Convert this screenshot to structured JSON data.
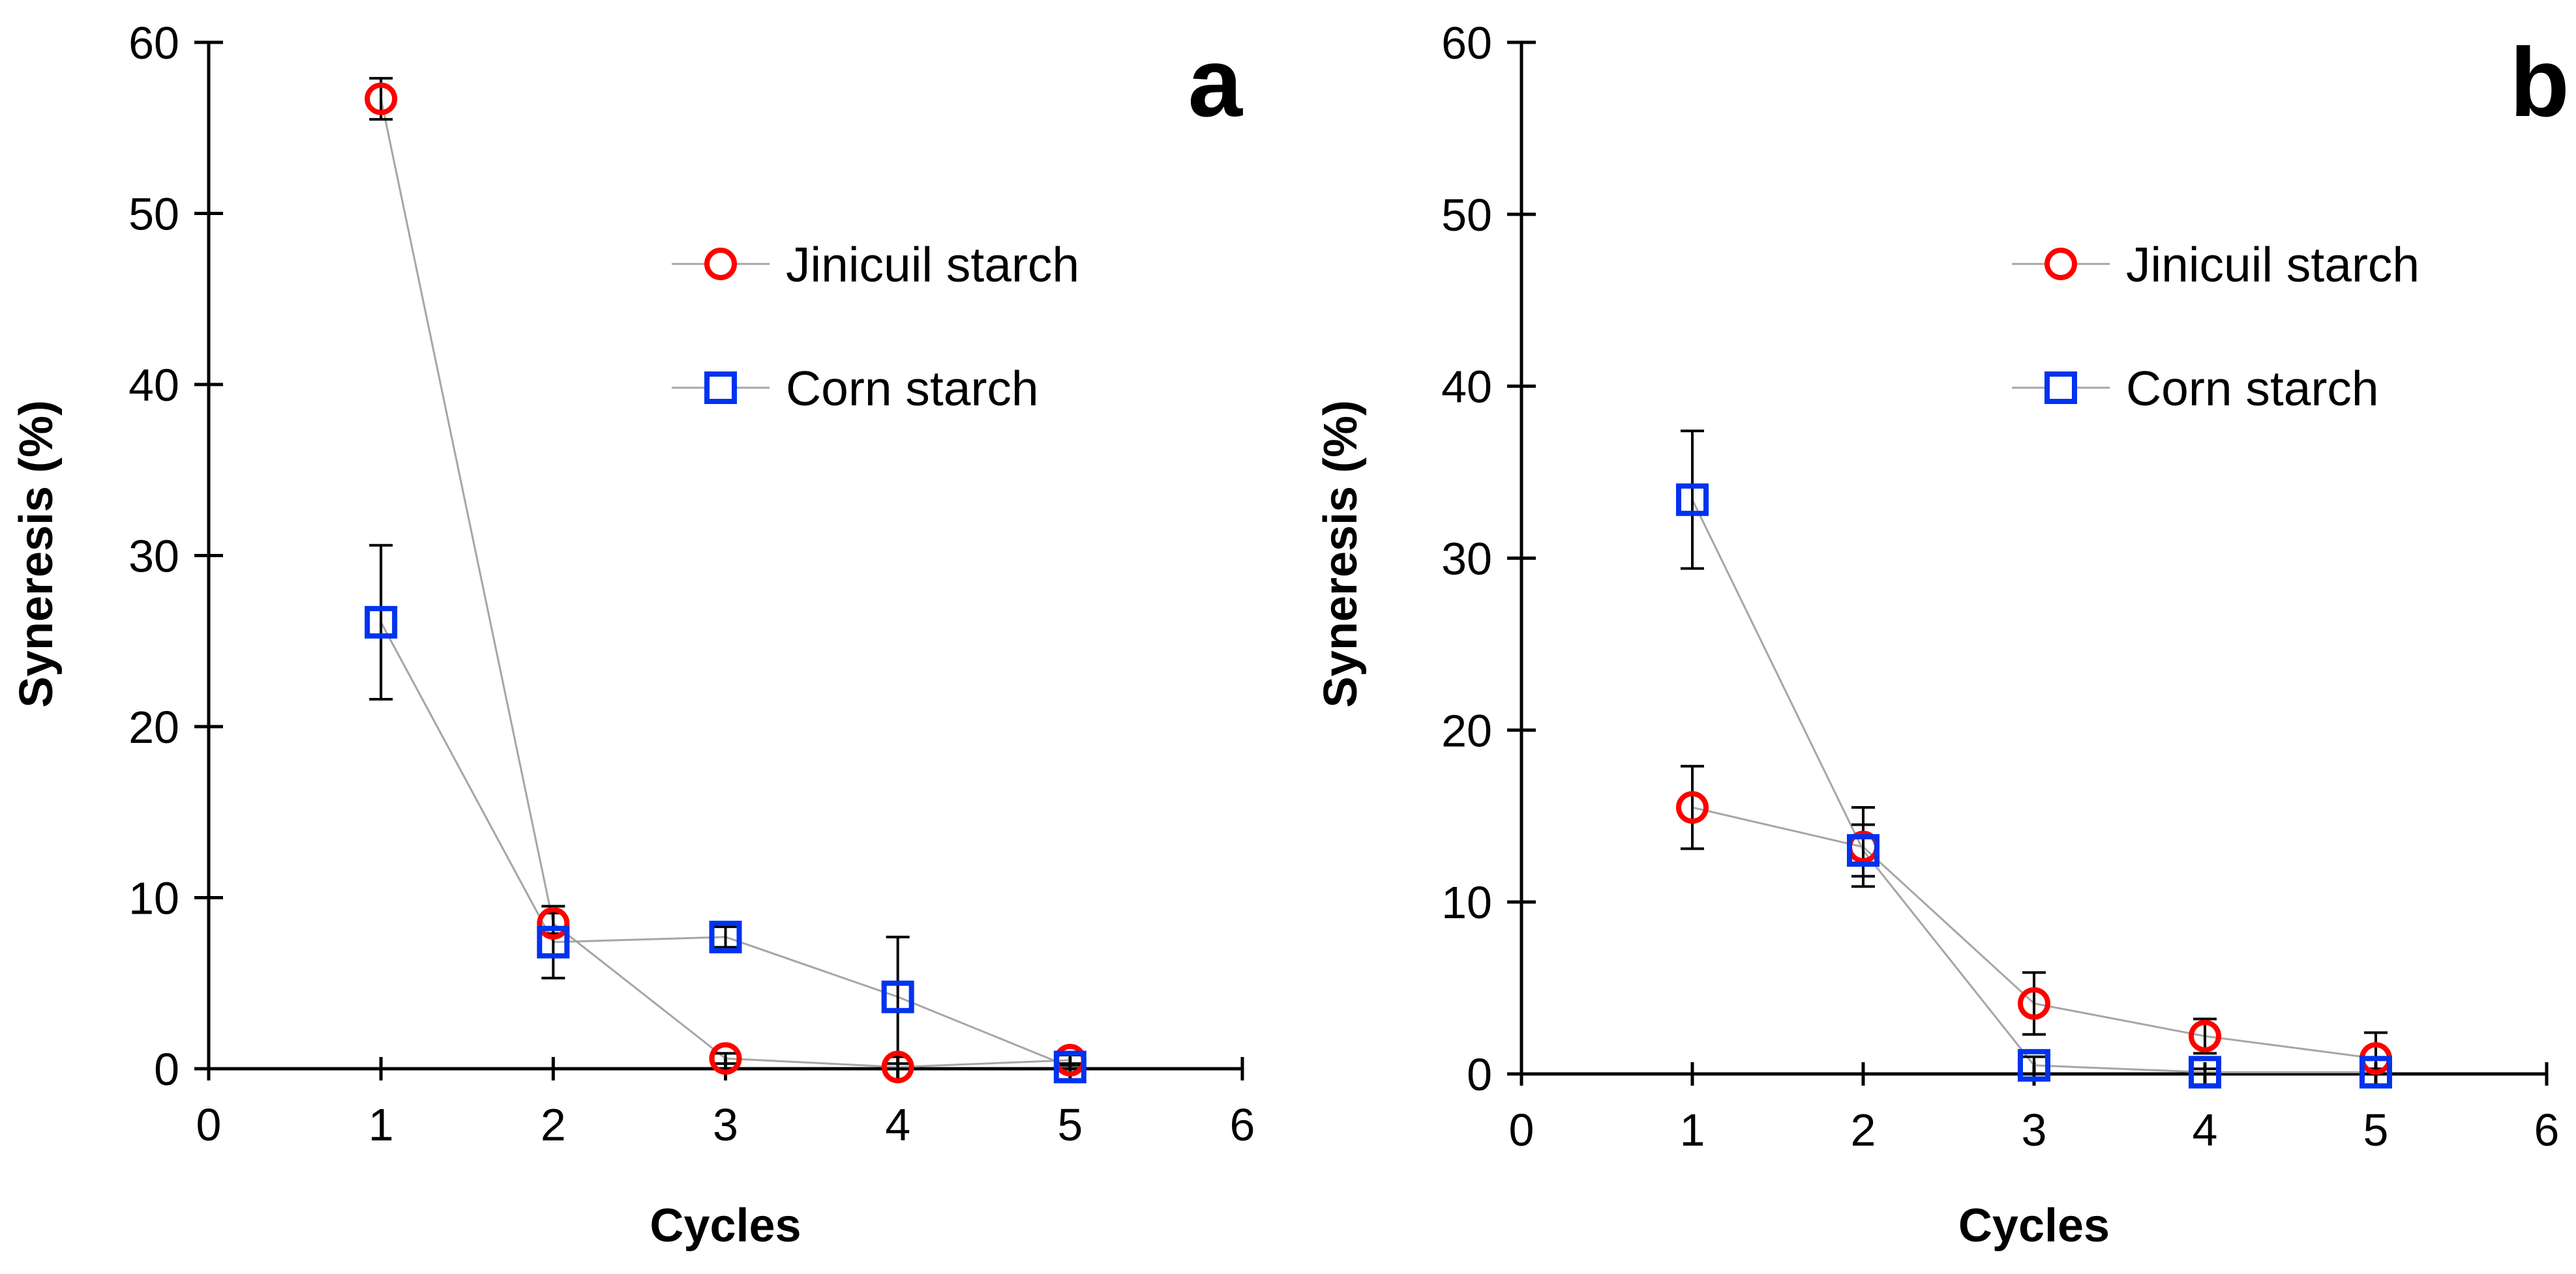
{
  "chart_data": [
    {
      "type": "scatter",
      "panel_label": "a",
      "xlabel": "Cycles",
      "ylabel": "Syneresis (%)",
      "xlim": [
        0,
        6
      ],
      "ylim": [
        0,
        60
      ],
      "x_ticks": [
        "0",
        "1",
        "2",
        "3",
        "4",
        "5",
        "6"
      ],
      "y_ticks": [
        "0",
        "10",
        "20",
        "30",
        "40",
        "50",
        "60"
      ],
      "grid": false,
      "legend_position": "upper-right",
      "series": [
        {
          "name": "Jinicuil starch",
          "marker": "circle",
          "color": "#ff0000",
          "x": [
            1,
            2,
            3,
            4,
            5
          ],
          "y": [
            56.7,
            8.5,
            0.6,
            0.1,
            0.5
          ],
          "error": [
            1.2,
            0.6,
            0.3,
            0.2,
            0.3
          ]
        },
        {
          "name": "Corn starch",
          "marker": "square",
          "color": "#0033ee",
          "x": [
            1,
            2,
            3,
            4,
            5
          ],
          "y": [
            26.1,
            7.4,
            7.7,
            4.2,
            0.1
          ],
          "error": [
            4.5,
            2.1,
            0.6,
            3.5,
            0.2
          ]
        }
      ]
    },
    {
      "type": "scatter",
      "panel_label": "b",
      "xlabel": "Cycles",
      "ylabel": "Syneresis (%)",
      "xlim": [
        0,
        6
      ],
      "ylim": [
        0,
        60
      ],
      "x_ticks": [
        "0",
        "1",
        "2",
        "3",
        "4",
        "5",
        "6"
      ],
      "y_ticks": [
        "0",
        "10",
        "20",
        "30",
        "40",
        "50",
        "60"
      ],
      "grid": false,
      "legend_position": "upper-right",
      "series": [
        {
          "name": "Jinicuil starch",
          "marker": "circle",
          "color": "#ff0000",
          "x": [
            1,
            2,
            3,
            4,
            5
          ],
          "y": [
            15.5,
            13.2,
            4.1,
            2.2,
            0.9
          ],
          "error": [
            2.4,
            2.3,
            1.8,
            1.0,
            1.5
          ]
        },
        {
          "name": "Corn starch",
          "marker": "square",
          "color": "#0033ee",
          "x": [
            1,
            2,
            3,
            4,
            5
          ],
          "y": [
            33.4,
            13.0,
            0.5,
            0.1,
            0.1
          ],
          "error": [
            4.0,
            1.5,
            0.5,
            0.2,
            0.2
          ]
        }
      ]
    }
  ],
  "style": {
    "line_color": "#a6a6a6",
    "axis_color": "#000000",
    "error_bar_color": "#000000"
  }
}
